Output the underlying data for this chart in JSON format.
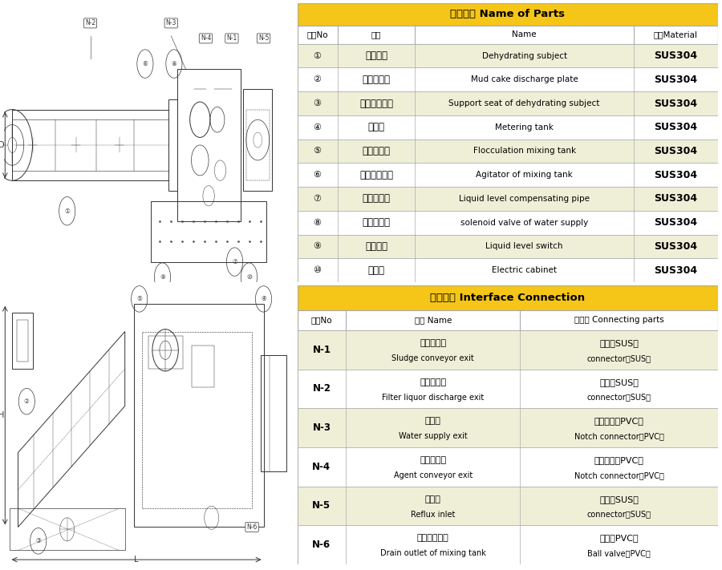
{
  "table1_title": "部件名称 Name of Parts",
  "table1_rows": [
    [
      "①",
      "脱水主体",
      "Dehydrating subject",
      "SUS304"
    ],
    [
      "②",
      "泥饼排出板",
      "Mud cake discharge plate",
      "SUS304"
    ],
    [
      "③",
      "脱水主体底座",
      "Support seat of dehydrating subject",
      "SUS304"
    ],
    [
      "④",
      "计量槽",
      "Metering tank",
      "SUS304"
    ],
    [
      "⑤",
      "絮凝混合槽",
      "Flocculation mixing tank",
      "SUS304"
    ],
    [
      "⑥",
      "混合槽搅拌机",
      "Agitator of mixing tank",
      "SUS304"
    ],
    [
      "⑦",
      "液位调整管",
      "Liquid level compensating pipe",
      "SUS304"
    ],
    [
      "⑧",
      "供水电磁阀",
      "solenoid valve of water supply",
      "SUS304"
    ],
    [
      "⑨",
      "液位开关",
      "Liquid level switch",
      "SUS304"
    ],
    [
      "⑩",
      "电控柜",
      "Electric cabinet",
      "SUS304"
    ]
  ],
  "table1_header": [
    "编号No",
    "名称",
    "Name",
    "材质Material"
  ],
  "table2_title": "接口连接 Interface Connection",
  "table2_header": [
    "编号No",
    "名称 Name",
    "连接部 Connecting parts"
  ],
  "table2_rows": [
    [
      "N-1",
      "污泥输送口\nSludge conveyor exit",
      "接口（SUS）\nconnector（SUS）"
    ],
    [
      "N-2",
      "滤液排出口\nFilter liquor discharge exit",
      "接口（SUS）\nconnector（SUS）"
    ],
    [
      "N-3",
      "供水口\nWater supply exit",
      "凹口接口（PVC）\nNotch connector（PVC）"
    ],
    [
      "N-4",
      "药液输送口\nAgent conveyor exit",
      "凹口接口（PVC）\nNotch connector（PVC）"
    ],
    [
      "N-5",
      "回流口\nReflux inlet",
      "接口（SUS）\nconnector（SUS）"
    ],
    [
      "N-6",
      "混合槽排污口\nDrain outlet of mixing tank",
      "球阀（PVC）\nBall valve（PVC）"
    ]
  ],
  "header_bg": "#F5C518",
  "row_bg_alt": "#EFEFD8",
  "row_bg_white": "#FFFFFF",
  "border_color": "#AAAAAA",
  "fig_width": 9.0,
  "fig_height": 7.11
}
